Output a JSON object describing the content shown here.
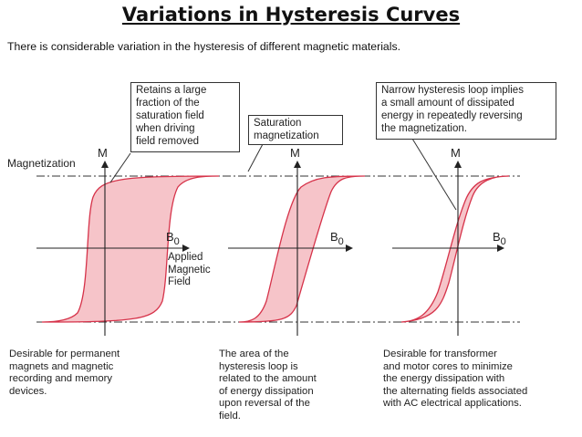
{
  "title": "Variations in Hysteresis Curves",
  "subtitle": "There is considerable variation in the hysteresis of different magnetic materials.",
  "axes": {
    "magnetization_label": "Magnetization",
    "m_label": "M",
    "b_label": "B",
    "b_subscript": "0",
    "applied_field_label": "Applied\nMagnetic\nField"
  },
  "callouts": {
    "retains": "Retains a large\nfraction of the\nsaturation field\nwhen driving\nfield removed",
    "saturation": "Saturation\nmagnetization",
    "narrow": "Narrow hysteresis loop implies\na small amount of dissipated\nenergy in repeatedly reversing\nthe magnetization."
  },
  "captions": {
    "left": "Desirable for permanent\nmagnets and magnetic\nrecording and memory\ndevices.",
    "middle": "The area of the\nhysteresis loop is\nrelated to the amount\nof energy dissipation\nupon reversal of the\nfield.",
    "right": "Desirable for transformer\nand motor cores to minimize\nthe energy dissipation with\nthe alternating fields associated\nwith AC electrical applications."
  },
  "colors": {
    "loop_fill": "#f6c4c9",
    "loop_stroke": "#d6334a",
    "axis": "#222222",
    "dash": "#333333"
  }
}
